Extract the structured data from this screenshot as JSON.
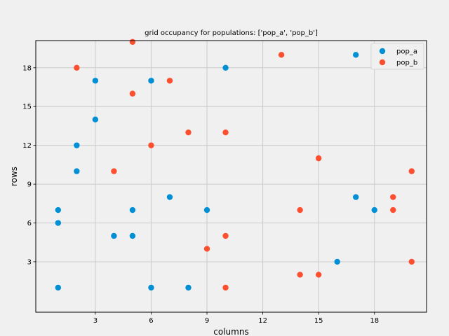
{
  "chart_data": {
    "type": "scatter",
    "title": "grid occupancy for populations: ['pop_a', 'pop_b']",
    "xlabel": "columns",
    "ylabel": "rows",
    "xlim": [
      -0.2,
      20.8
    ],
    "ylim": [
      -0.9,
      20.1
    ],
    "xticks": [
      3,
      6,
      9,
      12,
      15,
      18
    ],
    "yticks": [
      3,
      6,
      9,
      12,
      15,
      18
    ],
    "grid": true,
    "legend_position": "top-right",
    "series": [
      {
        "name": "pop_a",
        "color": "#008fd5",
        "points": [
          [
            1,
            1
          ],
          [
            1,
            6
          ],
          [
            1,
            7
          ],
          [
            2,
            10
          ],
          [
            2,
            12
          ],
          [
            3,
            14
          ],
          [
            3,
            17
          ],
          [
            4,
            5
          ],
          [
            5,
            5
          ],
          [
            5,
            7
          ],
          [
            6,
            1
          ],
          [
            6,
            17
          ],
          [
            7,
            8
          ],
          [
            8,
            1
          ],
          [
            9,
            7
          ],
          [
            10,
            18
          ],
          [
            16,
            3
          ],
          [
            17,
            8
          ],
          [
            17,
            19
          ],
          [
            18,
            7
          ]
        ]
      },
      {
        "name": "pop_b",
        "color": "#fc4f30",
        "points": [
          [
            2,
            18
          ],
          [
            4,
            10
          ],
          [
            5,
            16
          ],
          [
            5,
            20
          ],
          [
            6,
            12
          ],
          [
            7,
            17
          ],
          [
            8,
            13
          ],
          [
            9,
            4
          ],
          [
            10,
            1
          ],
          [
            10,
            5
          ],
          [
            10,
            13
          ],
          [
            13,
            19
          ],
          [
            14,
            2
          ],
          [
            14,
            7
          ],
          [
            15,
            2
          ],
          [
            15,
            11
          ],
          [
            19,
            7
          ],
          [
            19,
            8
          ],
          [
            20,
            3
          ],
          [
            20,
            10
          ]
        ]
      }
    ]
  }
}
